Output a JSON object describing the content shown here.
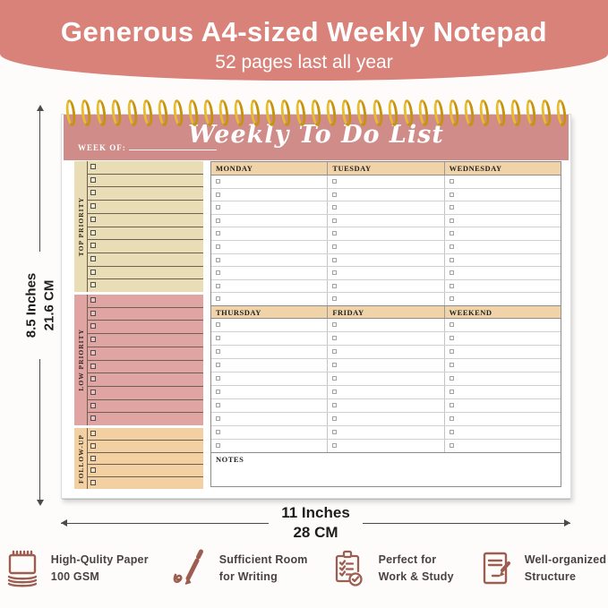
{
  "banner": {
    "title": "Generous A4-sized Weekly Notepad",
    "subtitle": "52 pages last all year"
  },
  "notepad": {
    "ring_count": 33,
    "week_of_label": "WEEK OF:",
    "title": "Weekly To Do List",
    "left_sections": [
      {
        "label": "TOP PRIORITY",
        "rows": 10
      },
      {
        "label": "LOW PRIORITY",
        "rows": 10
      },
      {
        "label": "FOLLOW-UP",
        "rows": 5
      }
    ],
    "day_groups": [
      {
        "days": [
          "MONDAY",
          "TUESDAY",
          "WEDNESDAY"
        ],
        "rows": 10
      },
      {
        "days": [
          "THURSDAY",
          "FRIDAY",
          "WEEKEND"
        ],
        "rows": 10
      }
    ],
    "notes_label": "NOTES"
  },
  "dimensions": {
    "height_inches": "8.5 Inches",
    "height_cm": "21.6 CM",
    "width_inches": "11 Inches",
    "width_cm": "28 CM"
  },
  "features": [
    {
      "icon": "notepad-icon",
      "line1": "High-Qulity Paper",
      "line2": "100 GSM"
    },
    {
      "icon": "pen-icon",
      "line1": "Sufficient Room",
      "line2": "for Writing"
    },
    {
      "icon": "clipboard-icon",
      "line1": "Perfect for",
      "line2": "Work & Study"
    },
    {
      "icon": "document-icon",
      "line1": "Well-organized",
      "line2": "Structure"
    }
  ],
  "colors": {
    "banner_bg": "#d9827a",
    "notepad_header_pink": "#cf8c88",
    "spiral_gold": "#c6930c",
    "top_priority_bg": "#e9ddb6",
    "low_priority_bg": "#e0a4a3",
    "follow_up_bg": "#f3d0a2",
    "day_header_bg": "#f0d3a8",
    "feature_icon_brown": "#9d5e52"
  }
}
